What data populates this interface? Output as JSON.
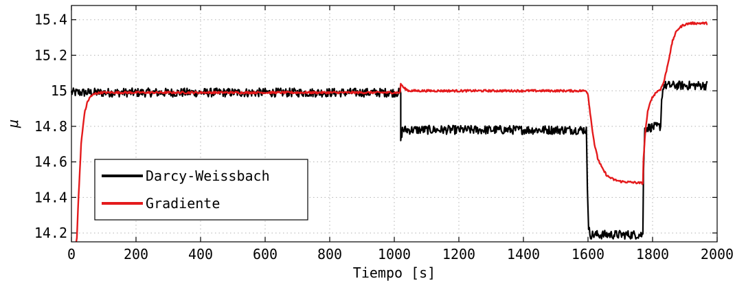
{
  "chart_data": {
    "type": "line",
    "title": "",
    "xlabel": "Tiempo [s]",
    "ylabel": "μ",
    "xlim": [
      0,
      2000
    ],
    "ylim": [
      14.15,
      15.48
    ],
    "grid": true,
    "legend_position": "bottom-left",
    "x_ticks": [
      0,
      200,
      400,
      600,
      800,
      1000,
      1200,
      1400,
      1600,
      1800,
      2000
    ],
    "x_tick_labels": [
      "0",
      "200",
      "400",
      "600",
      "800",
      "1000",
      "1200",
      "1400",
      "1600",
      "1800",
      "2000"
    ],
    "y_ticks": [
      14.2,
      14.4,
      14.6,
      14.8,
      15.0,
      15.2,
      15.4
    ],
    "y_tick_labels": [
      "14.2",
      "14.4",
      "14.6",
      "14.8",
      "15",
      "15.2",
      "15.4"
    ],
    "series": [
      {
        "name": "Darcy-Weissbach",
        "color": "#000000",
        "noise_amplitude": 0.025,
        "x": [
          0,
          1020,
          1020,
          1025,
          1030,
          1595,
          1598,
          1602,
          1608,
          1770,
          1772,
          1776,
          1825,
          1828,
          1834,
          1970
        ],
        "y": [
          14.99,
          14.99,
          14.72,
          14.78,
          14.78,
          14.78,
          14.45,
          14.22,
          14.19,
          14.19,
          14.55,
          14.79,
          14.8,
          14.95,
          15.03,
          15.03
        ]
      },
      {
        "name": "Gradiente",
        "color": "#e41a1c",
        "noise_amplitude": 0.006,
        "x": [
          15,
          22,
          30,
          40,
          50,
          60,
          75,
          90,
          110,
          130,
          1018,
          1020,
          1030,
          1045,
          1065,
          1595,
          1600,
          1605,
          1612,
          1620,
          1630,
          1645,
          1660,
          1680,
          1700,
          1770,
          1772,
          1778,
          1785,
          1795,
          1810,
          1825,
          1835,
          1845,
          1855,
          1862,
          1870,
          1880,
          1895,
          1915,
          1940,
          1970
        ],
        "y": [
          14.1,
          14.4,
          14.7,
          14.87,
          14.94,
          14.97,
          14.985,
          14.99,
          14.99,
          14.99,
          14.99,
          15.04,
          15.015,
          15.0,
          15.0,
          15.0,
          14.98,
          14.9,
          14.8,
          14.7,
          14.62,
          14.56,
          14.52,
          14.5,
          14.49,
          14.48,
          14.62,
          14.78,
          14.88,
          14.95,
          14.99,
          15.01,
          15.05,
          15.13,
          15.22,
          15.28,
          15.32,
          15.35,
          15.37,
          15.38,
          15.38,
          15.38
        ]
      }
    ]
  }
}
